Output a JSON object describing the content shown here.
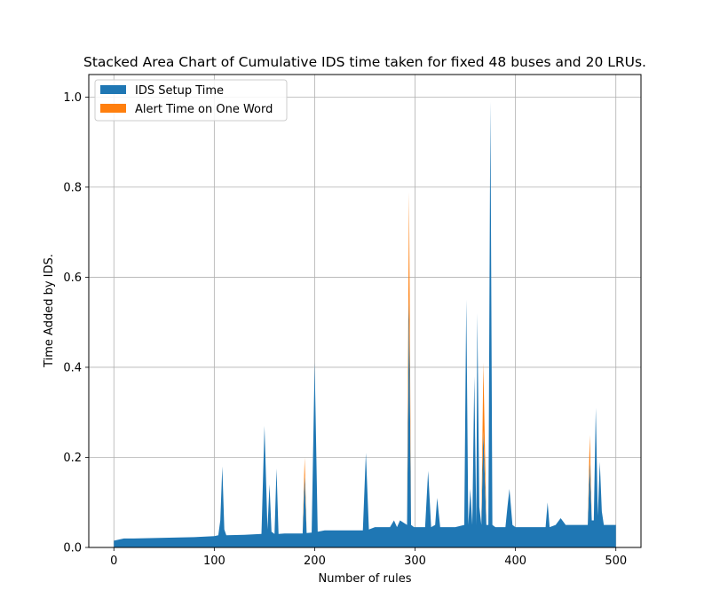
{
  "chart_data": {
    "type": "area",
    "stacked": true,
    "title": "Stacked Area Chart of Cumulative IDS time taken for fixed 48 buses and 20 LRUs.",
    "xlabel": "Number of rules",
    "ylabel": "Time Added by IDS.",
    "xlim": [
      -25,
      525
    ],
    "ylim": [
      0,
      1.05
    ],
    "xticks": [
      0,
      100,
      200,
      300,
      400,
      500
    ],
    "yticks": [
      0.0,
      0.2,
      0.4,
      0.6,
      0.8,
      1.0
    ],
    "xtick_labels": [
      "0",
      "100",
      "200",
      "300",
      "400",
      "500"
    ],
    "ytick_labels": [
      "0.0",
      "0.2",
      "0.4",
      "0.6",
      "0.8",
      "1.0"
    ],
    "grid": true,
    "legend_position": "top-left",
    "x": [
      0,
      10,
      20,
      40,
      60,
      80,
      100,
      104,
      106,
      108,
      110,
      112,
      130,
      147,
      150,
      153,
      155,
      157,
      160,
      162,
      164,
      170,
      188,
      190,
      192,
      197,
      200,
      203,
      210,
      230,
      248,
      251,
      254,
      260,
      275,
      279,
      282,
      285,
      292,
      294,
      296,
      299,
      310,
      313,
      316,
      320,
      322,
      325,
      340,
      349,
      351,
      353,
      355,
      357,
      359,
      361,
      362,
      364,
      366,
      368,
      371,
      373,
      375,
      377,
      380,
      390,
      392,
      394,
      397,
      400,
      430,
      432,
      434,
      440,
      445,
      450,
      470,
      472,
      474,
      476,
      478,
      480,
      482,
      484,
      486,
      488,
      490,
      500
    ],
    "series": [
      {
        "name": "IDS Setup Time",
        "color": "#1f77b4",
        "values": [
          0.015,
          0.02,
          0.02,
          0.021,
          0.022,
          0.023,
          0.025,
          0.027,
          0.06,
          0.18,
          0.04,
          0.027,
          0.028,
          0.03,
          0.27,
          0.04,
          0.14,
          0.035,
          0.03,
          0.175,
          0.03,
          0.031,
          0.031,
          0.16,
          0.032,
          0.033,
          0.41,
          0.035,
          0.038,
          0.038,
          0.038,
          0.21,
          0.04,
          0.045,
          0.045,
          0.06,
          0.045,
          0.06,
          0.05,
          0.56,
          0.05,
          0.045,
          0.045,
          0.17,
          0.045,
          0.05,
          0.11,
          0.045,
          0.045,
          0.05,
          0.55,
          0.05,
          0.13,
          0.05,
          0.38,
          0.05,
          0.52,
          0.09,
          0.05,
          0.26,
          0.05,
          0.05,
          0.99,
          0.05,
          0.045,
          0.045,
          0.09,
          0.13,
          0.05,
          0.045,
          0.045,
          0.1,
          0.045,
          0.05,
          0.065,
          0.05,
          0.05,
          0.05,
          0.19,
          0.06,
          0.06,
          0.31,
          0.07,
          0.19,
          0.08,
          0.05,
          0.05,
          0.05
        ]
      },
      {
        "name": "Alert Time on One Word",
        "color": "#ff7f0e",
        "values": [
          0,
          0,
          0,
          0,
          0,
          0,
          0,
          0,
          0,
          0,
          0,
          0,
          0,
          0,
          0,
          0,
          0,
          0,
          0,
          0,
          0,
          0,
          0,
          0.04,
          0,
          0,
          0,
          0,
          0,
          0,
          0,
          0,
          0,
          0,
          0,
          0,
          0,
          0,
          0,
          0.23,
          0,
          0,
          0,
          0,
          0,
          0,
          0,
          0,
          0,
          0,
          0,
          0,
          0,
          0,
          0,
          0,
          0,
          0,
          0,
          0.15,
          0,
          0,
          0,
          0,
          0,
          0,
          0,
          0,
          0,
          0,
          0,
          0,
          0,
          0,
          0,
          0,
          0,
          0,
          0.06,
          0,
          0,
          0,
          0,
          0,
          0,
          0,
          0,
          0
        ]
      }
    ]
  }
}
